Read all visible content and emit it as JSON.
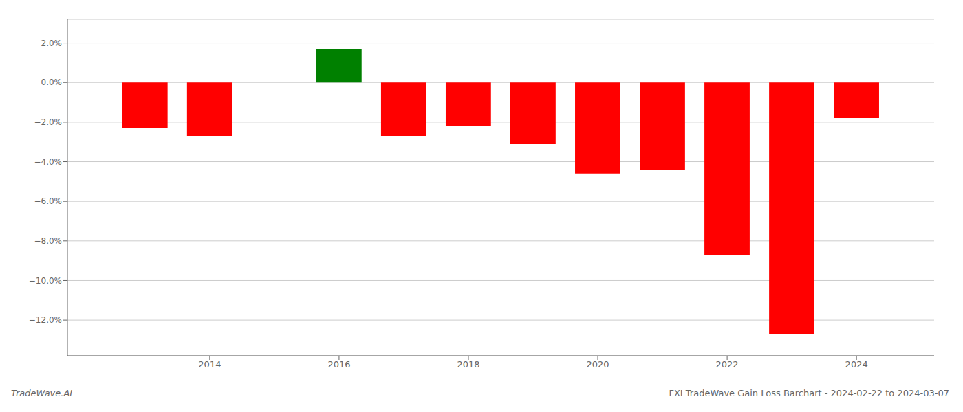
{
  "chart_data": {
    "type": "bar",
    "title": "FXI TradeWave Gain Loss Barchart - 2024-02-22 to 2024-03-07",
    "annotations": [
      "TradeWave.AI"
    ],
    "x": [
      2013,
      2014,
      2016,
      2017,
      2018,
      2019,
      2020,
      2021,
      2022,
      2023,
      2024
    ],
    "values": [
      -2.3,
      -2.7,
      1.7,
      -2.7,
      -2.2,
      -3.1,
      -4.6,
      -4.4,
      -8.7,
      -12.7,
      -1.8
    ],
    "colors": [
      "red",
      "red",
      "green",
      "red",
      "red",
      "red",
      "red",
      "red",
      "red",
      "red",
      "red"
    ],
    "xlim": [
      2011.8,
      2025.2
    ],
    "xticks": [
      2014,
      2016,
      2018,
      2020,
      2022,
      2024
    ],
    "ylim": [
      -13.8,
      3.2
    ],
    "yticks": [
      {
        "value": 2.0,
        "label": "2.0%"
      },
      {
        "value": 0.0,
        "label": "0.0%"
      },
      {
        "value": -2.0,
        "label": "−2.0%"
      },
      {
        "value": -4.0,
        "label": "−4.0%"
      },
      {
        "value": -6.0,
        "label": "−6.0%"
      },
      {
        "value": -8.0,
        "label": "−8.0%"
      },
      {
        "value": -10.0,
        "label": "−10.0%"
      },
      {
        "value": -12.0,
        "label": "−12.0%"
      }
    ],
    "grid": true
  }
}
